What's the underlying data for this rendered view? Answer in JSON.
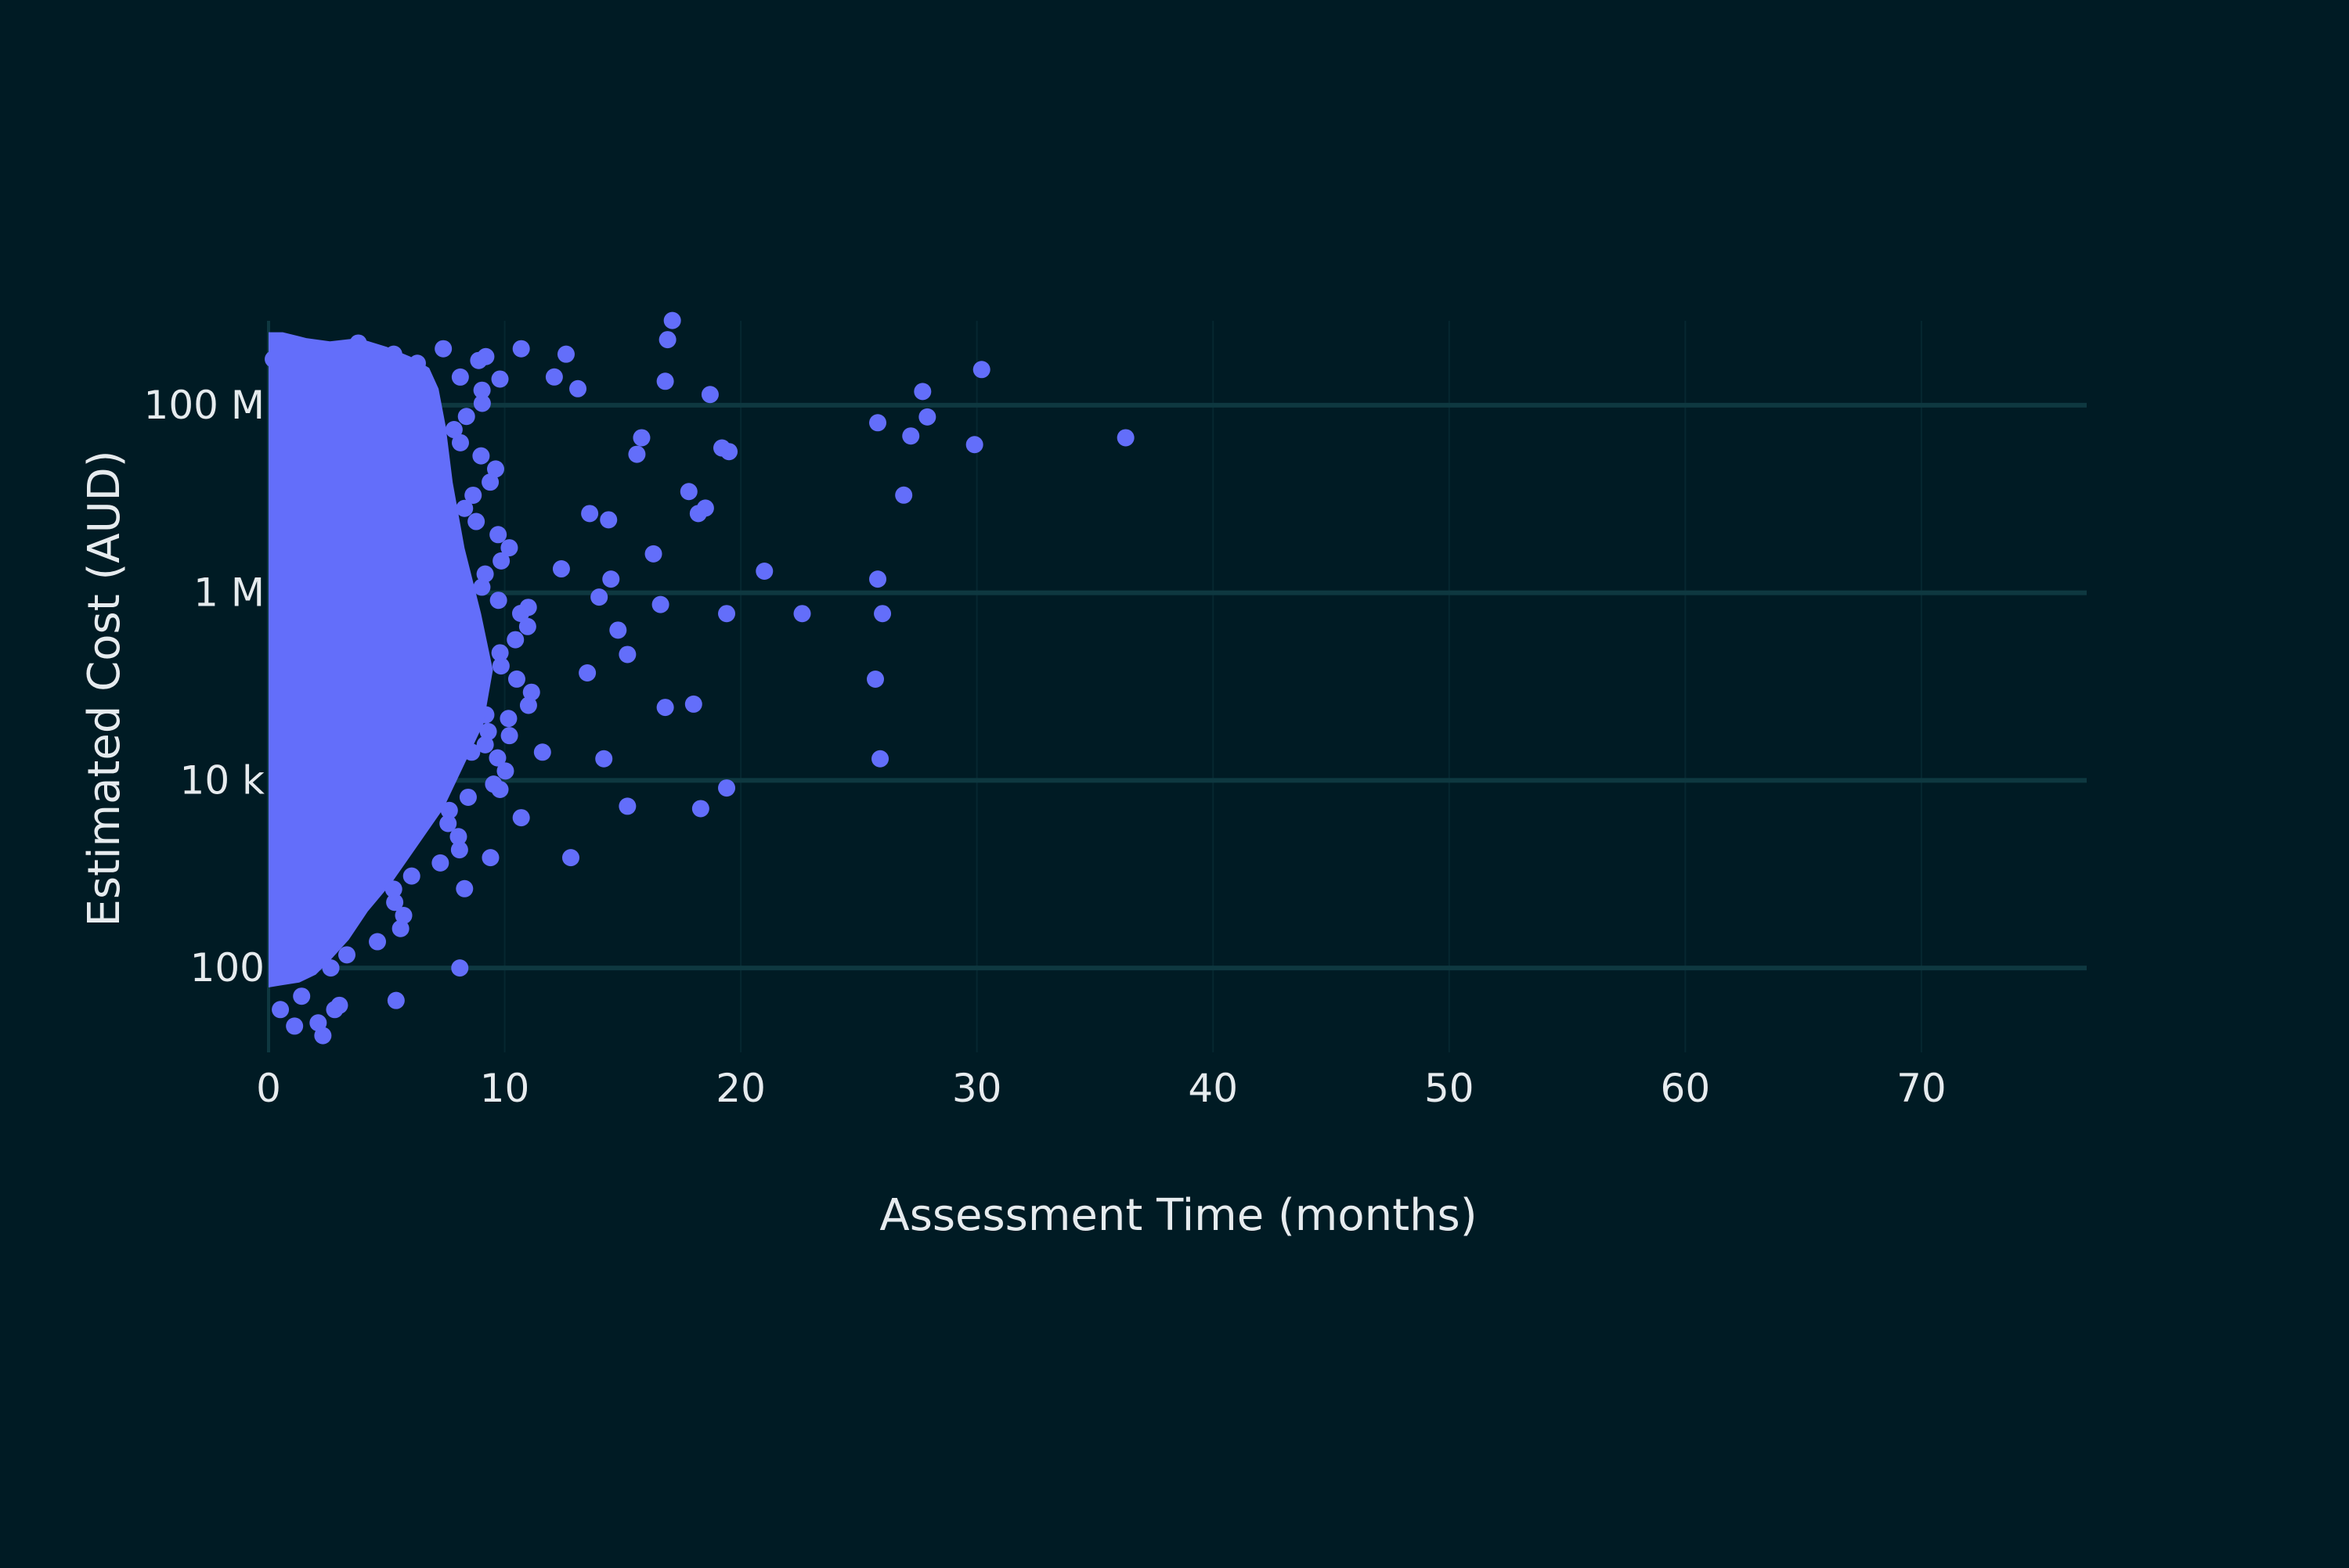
{
  "chart_data": {
    "type": "scatter",
    "title": "",
    "xlabel": "Assessment Time (months)",
    "ylabel": "Estimated Cost (AUD)",
    "y_scale": "log",
    "xlim": [
      0,
      77
    ],
    "ylim_log10": [
      1.1,
      8.9
    ],
    "grid": {
      "x": true,
      "y": true
    },
    "colors": {
      "background": "#001b24",
      "grid": "#0e3840",
      "marker": "#636efa",
      "text": "#e6ebee"
    },
    "x_ticks": [
      {
        "value": 0,
        "label": "0"
      },
      {
        "value": 10,
        "label": "10"
      },
      {
        "value": 20,
        "label": "20"
      },
      {
        "value": 30,
        "label": "30"
      },
      {
        "value": 40,
        "label": "40"
      },
      {
        "value": 50,
        "label": "50"
      },
      {
        "value": 60,
        "label": "60"
      },
      {
        "value": 70,
        "label": "70"
      }
    ],
    "y_ticks": [
      {
        "value": 100,
        "label": "100"
      },
      {
        "value": 10000,
        "label": "10 k"
      },
      {
        "value": 1000000,
        "label": "1 M"
      },
      {
        "value": 100000000,
        "label": "100 M"
      }
    ],
    "points": [
      [
        36.3,
        45000000
      ],
      [
        30.2,
        240000000
      ],
      [
        27.7,
        140000000
      ],
      [
        27.9,
        75000000
      ],
      [
        27.2,
        47000000
      ],
      [
        25.8,
        65000000
      ],
      [
        29.9,
        38000000
      ],
      [
        26.9,
        11000000
      ],
      [
        25.8,
        1400000
      ],
      [
        26.0,
        600000
      ],
      [
        25.7,
        120000
      ],
      [
        25.9,
        17000
      ],
      [
        22.6,
        600000
      ],
      [
        21.0,
        1700000
      ],
      [
        19.4,
        600000
      ],
      [
        19.4,
        8300
      ],
      [
        18.3,
        5000
      ],
      [
        18.0,
        65000
      ],
      [
        18.7,
        130000000
      ],
      [
        19.2,
        35000000
      ],
      [
        19.5,
        32000000
      ],
      [
        18.5,
        8000000
      ],
      [
        18.2,
        7000000
      ],
      [
        17.8,
        12000000
      ],
      [
        16.9,
        500000000
      ],
      [
        16.8,
        180000000
      ],
      [
        16.3,
        2600000
      ],
      [
        16.6,
        750000
      ],
      [
        16.8,
        60000
      ],
      [
        17.1,
        800000000
      ],
      [
        15.2,
        5300
      ],
      [
        14.2,
        17000
      ],
      [
        12.8,
        1500
      ],
      [
        15.6,
        30000000
      ],
      [
        14.8,
        400000
      ],
      [
        14.0,
        900000
      ],
      [
        13.5,
        140000
      ],
      [
        15.2,
        220000
      ],
      [
        14.5,
        1400000
      ],
      [
        15.8,
        45000000
      ],
      [
        13.1,
        150000000
      ],
      [
        12.6,
        350000000
      ],
      [
        12.1,
        200000000
      ],
      [
        13.6,
        7000000
      ],
      [
        14.4,
        6000000
      ],
      [
        11.0,
        700000
      ],
      [
        12.4,
        1800000
      ],
      [
        8.1,
        100
      ],
      [
        8.3,
        700
      ],
      [
        9.4,
        1500
      ],
      [
        10.7,
        4000
      ],
      [
        9.8,
        8000
      ],
      [
        11.6,
        20000
      ],
      [
        10.2,
        30000
      ],
      [
        9.2,
        50000
      ],
      [
        8.6,
        20000
      ],
      [
        5.4,
        45
      ],
      [
        2.3,
        19
      ],
      [
        2.1,
        26
      ],
      [
        1.1,
        24
      ],
      [
        3.0,
        40
      ],
      [
        2.8,
        36
      ],
      [
        0.5,
        36
      ],
      [
        1.4,
        50
      ],
      [
        10.7,
        400000000
      ],
      [
        9.2,
        330000000
      ],
      [
        8.9,
        300000000
      ],
      [
        9.8,
        190000000
      ],
      [
        7.4,
        400000000
      ],
      [
        6.3,
        280000000
      ],
      [
        5.3,
        350000000
      ],
      [
        4.7,
        320000000
      ],
      [
        3.8,
        460000000
      ],
      [
        2.6,
        340000000
      ],
      [
        1.6,
        380000000
      ],
      [
        0.6,
        390000000
      ],
      [
        0.2,
        310000000
      ]
    ]
  }
}
